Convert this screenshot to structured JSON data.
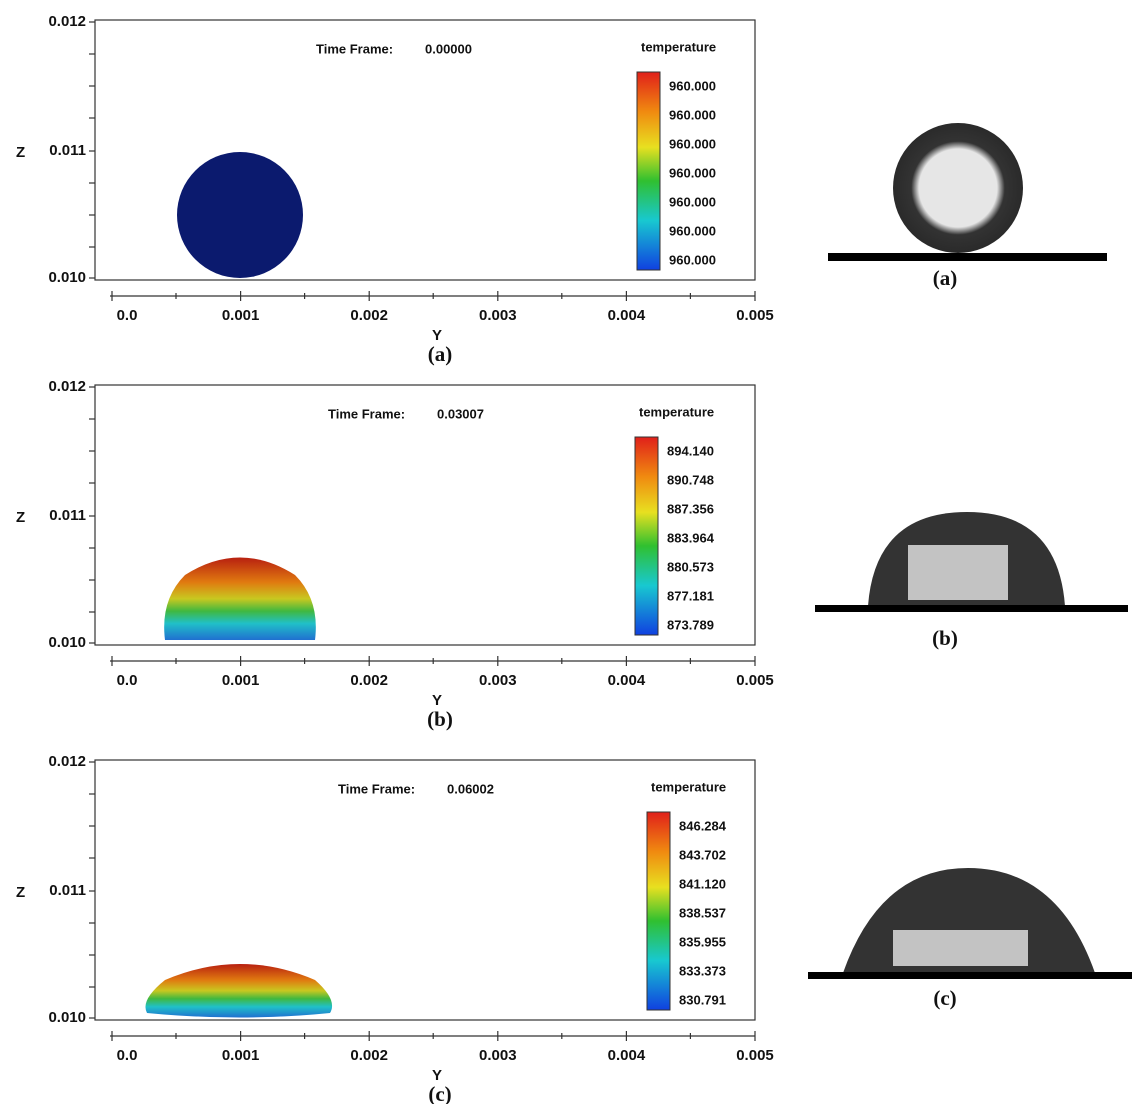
{
  "panels": [
    {
      "time_frame_label": "Time Frame:",
      "time_frame": "0.00000",
      "legend_title": "temperature",
      "legend_labels": [
        "960.000",
        "960.000",
        "960.000",
        "960.000",
        "960.000",
        "960.000",
        "960.000"
      ],
      "z_label": "Z",
      "z_ticks": [
        "0.012",
        "0.011",
        "0.010"
      ],
      "y_label": "Y",
      "y_ticks": [
        "0.0",
        "0.001",
        "0.002",
        "0.003",
        "0.004",
        "0.005"
      ],
      "caption": "(a)",
      "photo_caption": "(a)"
    },
    {
      "time_frame_label": "Time Frame:",
      "time_frame": "0.03007",
      "legend_title": "temperature",
      "legend_labels": [
        "894.140",
        "890.748",
        "887.356",
        "883.964",
        "880.573",
        "877.181",
        "873.789"
      ],
      "z_label": "Z",
      "z_ticks": [
        "0.012",
        "0.011",
        "0.010"
      ],
      "y_label": "Y",
      "y_ticks": [
        "0.0",
        "0.001",
        "0.002",
        "0.003",
        "0.004",
        "0.005"
      ],
      "caption": "(b)",
      "photo_caption": "(b)"
    },
    {
      "time_frame_label": "Time Frame:",
      "time_frame": "0.06002",
      "legend_title": "temperature",
      "legend_labels": [
        "846.284",
        "843.702",
        "841.120",
        "838.537",
        "835.955",
        "833.373",
        "830.791"
      ],
      "z_label": "Z",
      "z_ticks": [
        "0.012",
        "0.011",
        "0.010"
      ],
      "y_label": "Y",
      "y_ticks": [
        "0.0",
        "0.001",
        "0.002",
        "0.003",
        "0.004",
        "0.005"
      ],
      "caption": "(c)",
      "photo_caption": "(c)"
    }
  ]
}
